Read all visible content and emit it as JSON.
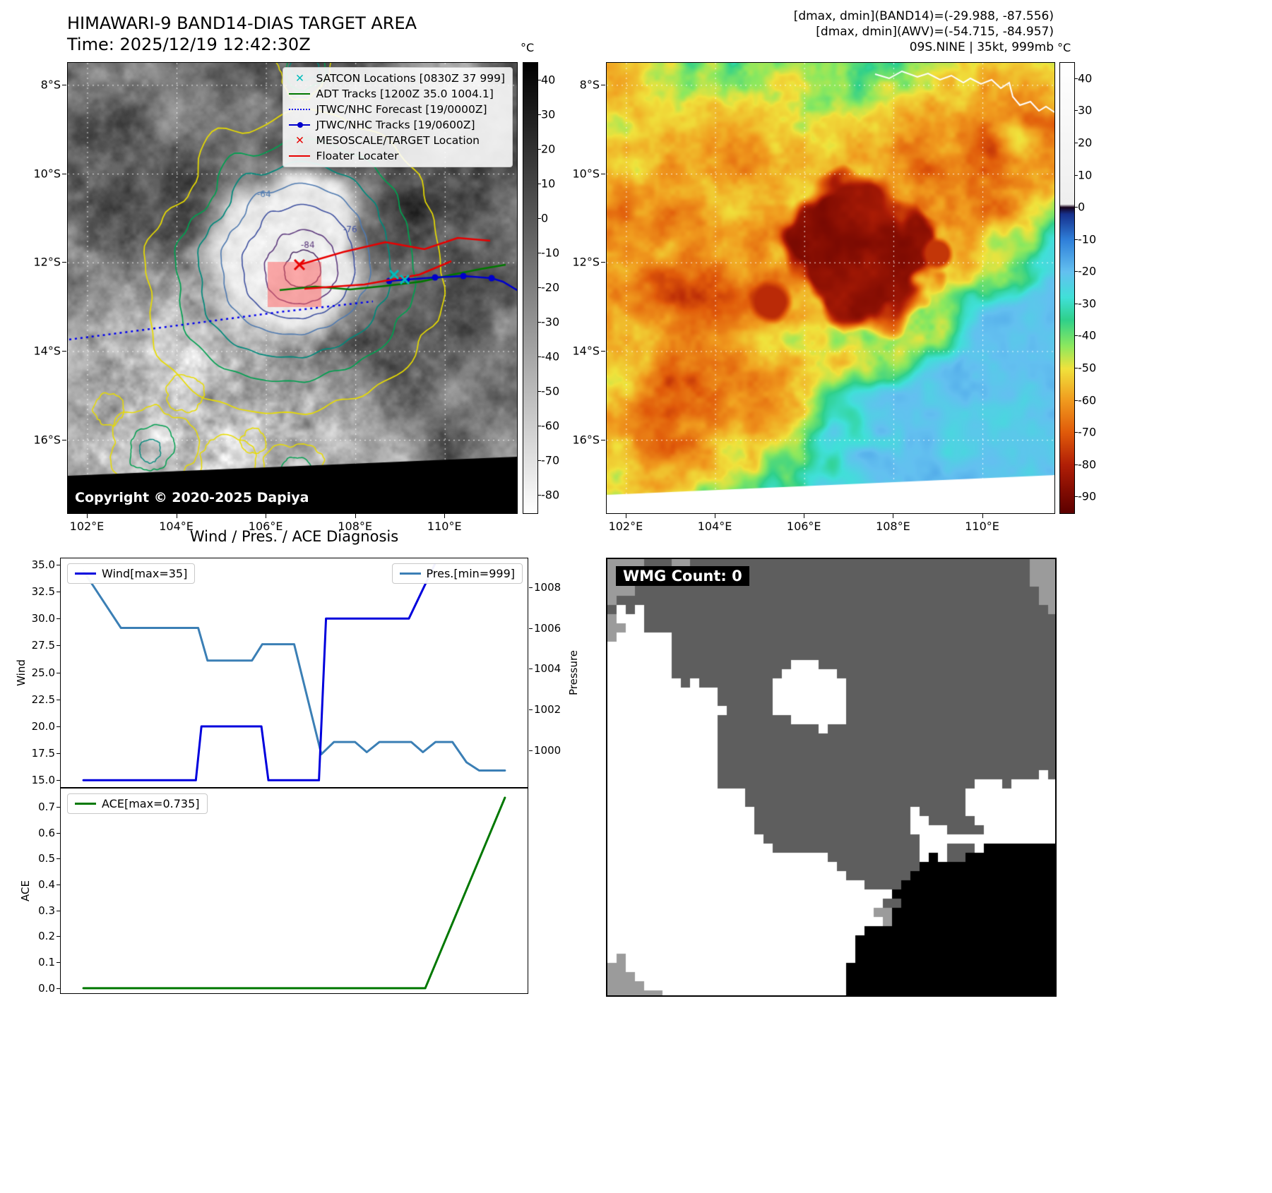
{
  "panel_band14": {
    "title_line1": "HIMAWARI-9 BAND14-DIAS TARGET AREA",
    "title_line2": "Time: 2025/12/19 12:42:30Z",
    "copyright": "Copyright © 2020-2025 Dapiya",
    "colorbar_unit": "°C",
    "colorbar_ticks": [
      40,
      30,
      20,
      10,
      0,
      -10,
      -20,
      -30,
      -40,
      -50,
      -60,
      -70,
      -80
    ],
    "x_ticks": [
      "102°E",
      "104°E",
      "106°E",
      "108°E",
      "110°E"
    ],
    "y_ticks": [
      "8°S",
      "10°S",
      "12°S",
      "14°S",
      "16°S"
    ],
    "contour_labels": [
      "-64",
      "-76",
      "-84"
    ],
    "legend": [
      {
        "label": "SATCON Locations [0830Z 37 999]",
        "marker": "x",
        "color": "#00bcbc"
      },
      {
        "label": "ADT Tracks [1200Z 35.0 1004.1]",
        "marker": "line",
        "color": "#007800"
      },
      {
        "label": "JTWC/NHC Forecast [19/0000Z]",
        "marker": "dotted",
        "color": "#0000ee"
      },
      {
        "label": "JTWC/NHC Tracks [19/0600Z]",
        "marker": "line-dot",
        "color": "#0000cc"
      },
      {
        "label": "MESOSCALE/TARGET Location",
        "marker": "x",
        "color": "#e80000"
      },
      {
        "label": "Floater Locater",
        "marker": "line",
        "color": "#e80000"
      }
    ]
  },
  "panel_awv": {
    "annotations": [
      "[dmax, dmin](BAND14)=(-29.988, -87.556)",
      "[dmax, dmin](AWV)=(-54.715, -84.957)",
      "09S.NINE | 35kt, 999mb"
    ],
    "colorbar_unit": "°C",
    "colorbar_ticks": [
      40,
      30,
      20,
      10,
      0,
      -10,
      -20,
      -30,
      -40,
      -50,
      -60,
      -70,
      -80,
      -90
    ],
    "x_ticks": [
      "102°E",
      "104°E",
      "106°E",
      "108°E",
      "110°E"
    ],
    "y_ticks": [
      "8°S",
      "10°S",
      "12°S",
      "14°S",
      "16°S"
    ]
  },
  "wmg": {
    "title": "WMG Count: 0"
  },
  "chart_data": [
    {
      "type": "line",
      "name": "wind_pressure",
      "title": "Wind / Pres. / ACE Diagnosis",
      "x_axis": "relative time position 0-1 (no tick labels shown)",
      "ylabel_left": "Wind",
      "ylabel_right": "Pressure",
      "yticks_left": [
        "35.0",
        "32.5",
        "30.0",
        "27.5",
        "25.0",
        "22.5",
        "20.0",
        "17.5",
        "15.0"
      ],
      "yticks_right": [
        "1008",
        "1006",
        "1004",
        "1002",
        "1000"
      ],
      "series": [
        {
          "name": "Wind[max=35]",
          "axis": "left",
          "color": "#0000dd",
          "ylim": [
            14.3,
            35.65
          ],
          "points": [
            [
              0.05,
              15
            ],
            [
              0.29,
              15
            ],
            [
              0.302,
              20
            ],
            [
              0.43,
              20
            ],
            [
              0.445,
              15
            ],
            [
              0.553,
              15
            ],
            [
              0.568,
              30
            ],
            [
              0.745,
              30
            ],
            [
              0.8,
              35
            ]
          ]
        },
        {
          "name": "Pres.[min=999]",
          "axis": "right",
          "color": "#3b7fb5",
          "ylim": [
            998.15,
            1009.45
          ],
          "points": [
            [
              0.05,
              1008.8
            ],
            [
              0.13,
              1006
            ],
            [
              0.295,
              1006
            ],
            [
              0.315,
              1004.4
            ],
            [
              0.41,
              1004.4
            ],
            [
              0.432,
              1005.2
            ],
            [
              0.5,
              1005.2
            ],
            [
              0.558,
              999.8
            ],
            [
              0.585,
              1000.4
            ],
            [
              0.63,
              1000.4
            ],
            [
              0.655,
              999.9
            ],
            [
              0.682,
              1000.4
            ],
            [
              0.75,
              1000.4
            ],
            [
              0.775,
              999.9
            ],
            [
              0.802,
              1000.4
            ],
            [
              0.838,
              1000.4
            ],
            [
              0.868,
              999.4
            ],
            [
              0.895,
              999.0
            ],
            [
              0.95,
              999.0
            ]
          ]
        }
      ]
    },
    {
      "type": "line",
      "name": "ace",
      "ylabel": "ACE",
      "yticks": [
        "0.7",
        "0.6",
        "0.5",
        "0.4",
        "0.3",
        "0.2",
        "0.1",
        "0.0"
      ],
      "series": [
        {
          "name": "ACE[max=0.735]",
          "color": "#007800",
          "ylim": [
            -0.022,
            0.773
          ],
          "points": [
            [
              0.05,
              0
            ],
            [
              0.78,
              0
            ],
            [
              0.95,
              0.735
            ]
          ]
        }
      ]
    }
  ],
  "colors": {
    "ir_colorbar_top": "#000000",
    "ir_colorbar_bottom": "#ffffff",
    "wind_line": "#0000dd",
    "pressure_line": "#3b7fb5",
    "ace_line": "#007800",
    "target_box_fill": "#ff5a5a",
    "grid_line": "#ffffff",
    "adt_track": "#007800",
    "forecast_track": "#0000ee",
    "jtwc_track": "#0000cc",
    "floater_line": "#e80000",
    "satcon_marker": "#00bcbc",
    "mesoscale_marker": "#e80000",
    "contour_colors": [
      "#e8dc00",
      "#00a050",
      "#00897b",
      "#4f7ab0",
      "#3f51a0",
      "#5e3b7e",
      "#4a2b66"
    ],
    "enhancement_palette": [
      [
        45,
        "#ffffff"
      ],
      [
        1,
        "#eeeeee"
      ],
      [
        0,
        "#16001a"
      ],
      [
        -2,
        "#16308c"
      ],
      [
        -10,
        "#2f7fd9"
      ],
      [
        -20,
        "#63c0f0"
      ],
      [
        -28,
        "#40e0d8"
      ],
      [
        -35,
        "#2fd08a"
      ],
      [
        -43,
        "#8ce85e"
      ],
      [
        -50,
        "#f0e23c"
      ],
      [
        -60,
        "#f09a1e"
      ],
      [
        -70,
        "#e05a0a"
      ],
      [
        -80,
        "#b01e06"
      ],
      [
        -88,
        "#820c02"
      ],
      [
        -95,
        "#5c0000"
      ]
    ]
  }
}
